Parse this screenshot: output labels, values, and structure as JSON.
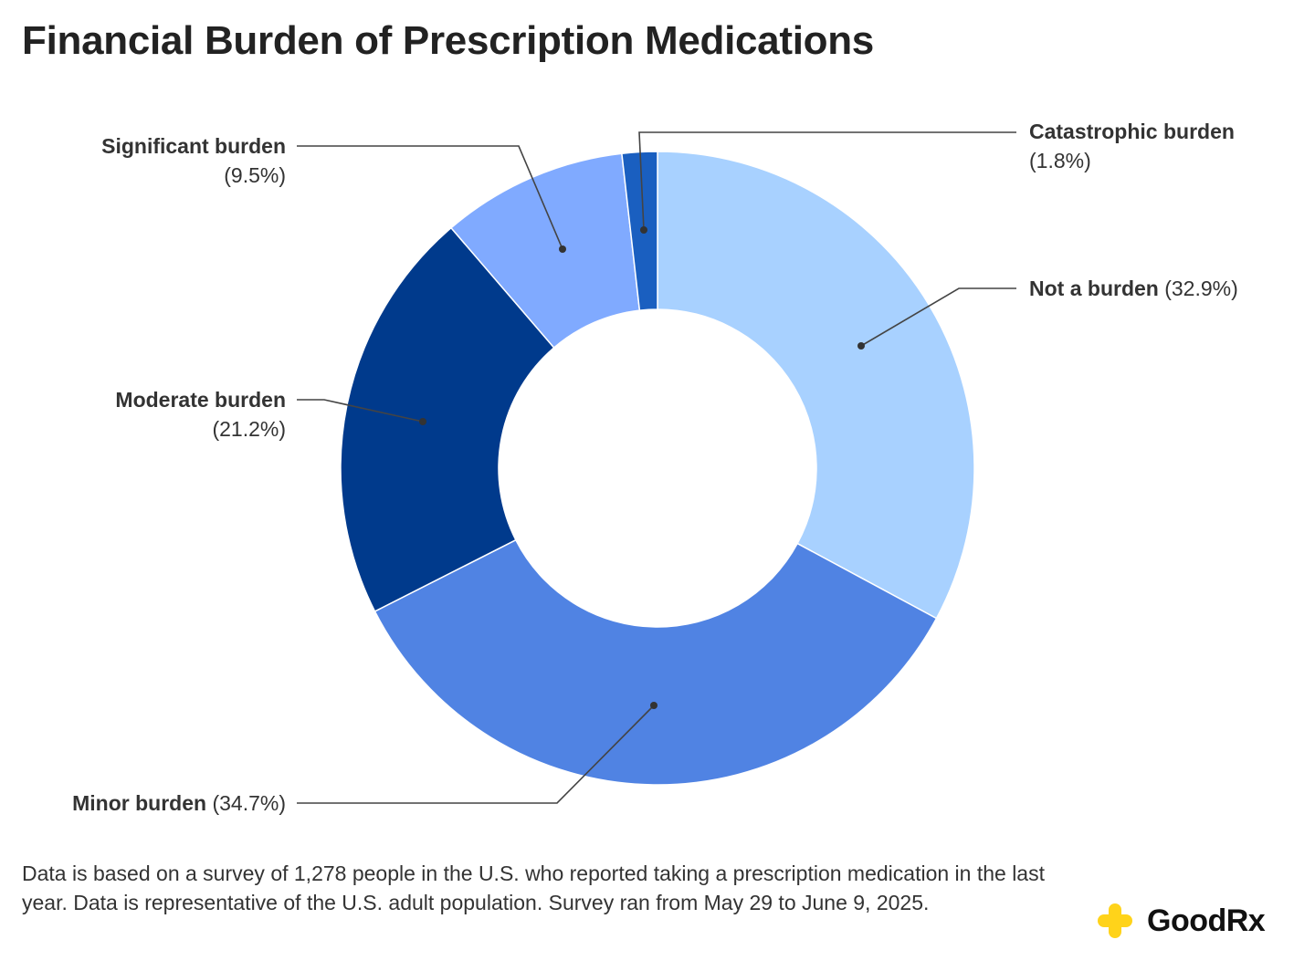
{
  "title": "Financial Burden of Prescription Medications",
  "chart_data": {
    "type": "pie",
    "variant": "donut",
    "title": "Financial Burden of Prescription Medications",
    "start_angle": "12 o'clock, clockwise",
    "slices": [
      {
        "label": "Not a burden",
        "value": 32.9,
        "value_label": "(32.9%)",
        "color": "#A8D1FF"
      },
      {
        "label": "Minor burden",
        "value": 34.7,
        "value_label": "(34.7%)",
        "color": "#5083E3"
      },
      {
        "label": "Moderate burden",
        "value": 21.2,
        "value_label": "(21.2%)",
        "color": "#003A8C"
      },
      {
        "label": "Significant burden",
        "value": 9.5,
        "value_label": "(9.5%)",
        "color": "#80AAFF"
      },
      {
        "label": "Catastrophic burden",
        "value": 1.8,
        "value_label": "(1.8%)",
        "color": "#1A5FC0"
      }
    ]
  },
  "footnote": "Data is based on a survey of 1,278 people in the U.S. who reported taking a prescription medication in the last year. Data is representative of the U.S. adult population. Survey ran from May 29 to June 9, 2025.",
  "logo": {
    "text": "GoodRx",
    "color": "#FFD31A"
  }
}
